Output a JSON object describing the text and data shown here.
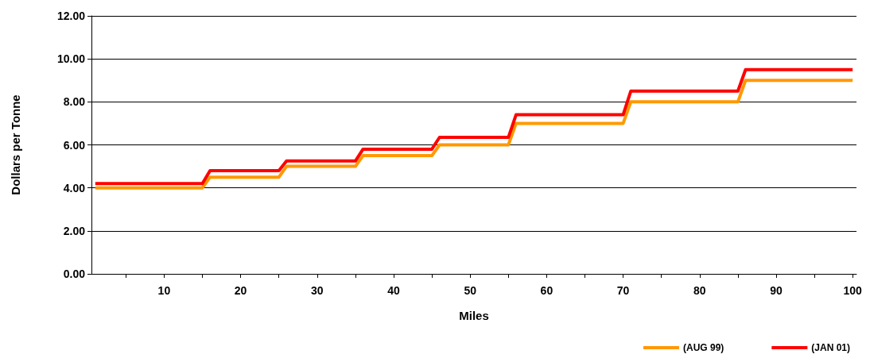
{
  "chart_data": {
    "type": "line",
    "xlabel": "Miles",
    "ylabel": "Dollars per Tonne",
    "x": [
      1,
      15,
      16,
      25,
      26,
      35,
      36,
      45,
      46,
      55,
      56,
      70,
      71,
      85,
      86,
      100
    ],
    "series": [
      {
        "name": "(AUG 99)",
        "color": "#ff9900",
        "values": [
          4.0,
          4.0,
          4.5,
          4.5,
          5.0,
          5.0,
          5.5,
          5.5,
          6.0,
          6.0,
          7.0,
          7.0,
          8.0,
          8.0,
          9.0,
          9.0
        ]
      },
      {
        "name": "(JAN 01)",
        "color": "#ff0000",
        "values": [
          4.2,
          4.2,
          4.8,
          4.8,
          5.25,
          5.25,
          5.8,
          5.8,
          6.35,
          6.35,
          7.4,
          7.4,
          8.5,
          8.5,
          9.5,
          9.5
        ]
      }
    ],
    "xlim": [
      0.5,
      100.5
    ],
    "xticks": [
      {
        "value": 5,
        "label": null
      },
      10,
      {
        "value": 15,
        "label": null
      },
      20,
      {
        "value": 25,
        "label": null
      },
      30,
      {
        "value": 35,
        "label": null
      },
      40,
      {
        "value": 45,
        "label": null
      },
      50,
      {
        "value": 55,
        "label": null
      },
      60,
      {
        "value": 65,
        "label": null
      },
      70,
      {
        "value": 75,
        "label": null
      },
      80,
      {
        "value": 85,
        "label": null
      },
      90,
      {
        "value": 95,
        "label": null
      },
      100
    ],
    "ylim": [
      0,
      12
    ],
    "yticks": [
      {
        "value": 0,
        "label": "0.00"
      },
      {
        "value": 2,
        "label": "2.00"
      },
      {
        "value": 4,
        "label": "4.00"
      },
      {
        "value": 6,
        "label": "6.00"
      },
      {
        "value": 8,
        "label": "8.00"
      },
      {
        "value": 10,
        "label": "10.00"
      },
      {
        "value": 12,
        "label": "12.00"
      }
    ],
    "grid": "y",
    "legend": "bottom right",
    "marker": "none",
    "line_style": "solid"
  }
}
